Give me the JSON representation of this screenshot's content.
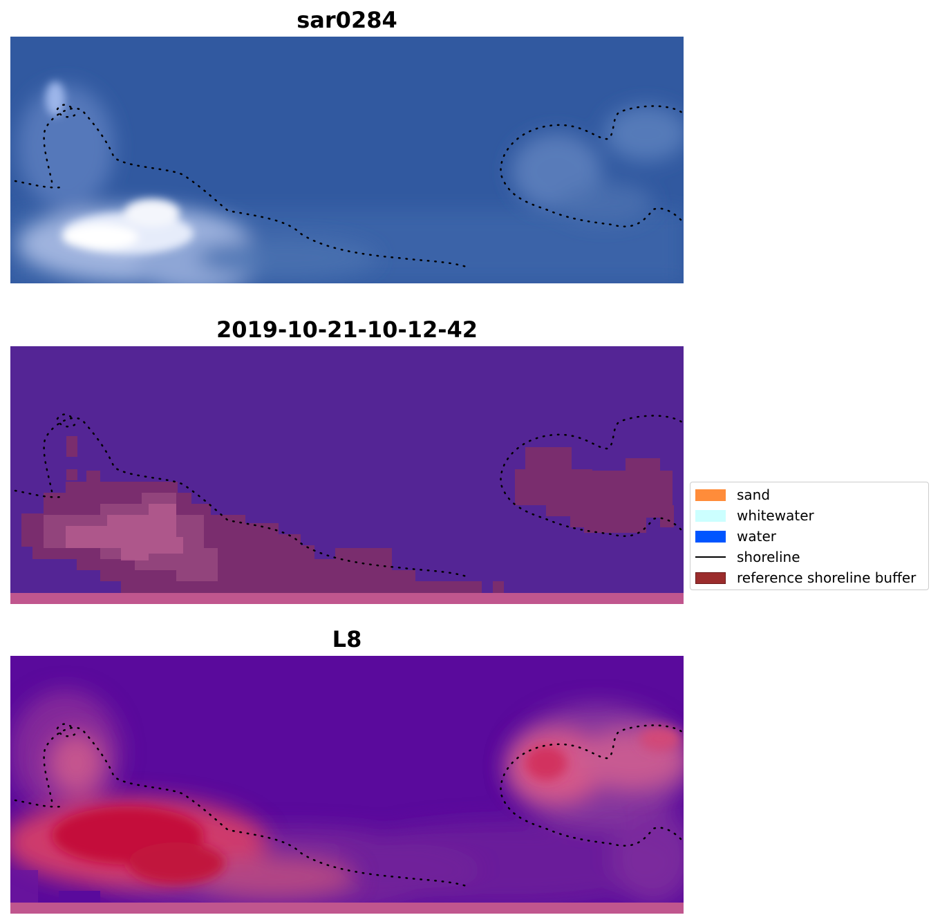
{
  "panels": [
    {
      "title": "sar0284",
      "type": "rgb"
    },
    {
      "title": "2019-10-21-10-12-42",
      "type": "classified"
    },
    {
      "title": "L8",
      "type": "index"
    }
  ],
  "legend": {
    "items": [
      {
        "label": "sand",
        "kind": "patch",
        "color": "#ff8c3a",
        "border": "#ff8c3a"
      },
      {
        "label": "whitewater",
        "kind": "patch",
        "color": "#ccffff",
        "border": "#ccffff"
      },
      {
        "label": "water",
        "kind": "patch",
        "color": "#0055ff",
        "border": "#0055ff"
      },
      {
        "label": "shoreline",
        "kind": "line",
        "color": "#000000"
      },
      {
        "label": "reference shoreline buffer",
        "kind": "patch",
        "color": "#9b2c2c",
        "border": "#6b1a1a"
      }
    ]
  },
  "colors": {
    "rgb_water": "#3159a0",
    "classified_bg": "#542595",
    "classified_buffer": "#7a2d6e",
    "index_bg": "#5a0a9c",
    "index_high": "#c4103a",
    "bottom_strip": "#c0568e"
  }
}
